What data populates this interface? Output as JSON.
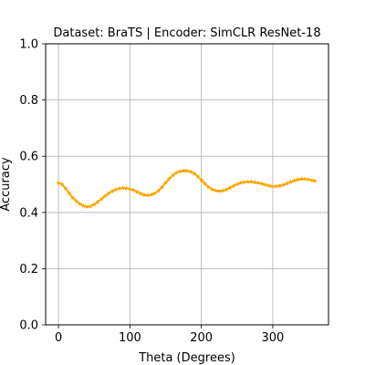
{
  "chart_data": {
    "type": "line",
    "title": "Dataset: BraTS | Encoder: SimCLR ResNet-18",
    "xlabel": "Theta (Degrees)",
    "ylabel": "Accuracy",
    "xlim": [
      -18,
      378
    ],
    "ylim": [
      0.0,
      1.0
    ],
    "xticks": [
      0,
      100,
      200,
      300
    ],
    "yticks": [
      0.0,
      0.2,
      0.4,
      0.6,
      0.8,
      1.0
    ],
    "xtick_labels": [
      "0",
      "100",
      "200",
      "300"
    ],
    "ytick_labels": [
      "0.0",
      "0.2",
      "0.4",
      "0.6",
      "0.8",
      "1.0"
    ],
    "grid": true,
    "series": [
      {
        "color": "#ffa500",
        "marker": "star",
        "x": [
          0,
          5,
          10,
          15,
          20,
          25,
          30,
          35,
          40,
          45,
          50,
          55,
          60,
          65,
          70,
          75,
          80,
          85,
          90,
          95,
          100,
          105,
          110,
          115,
          120,
          125,
          130,
          135,
          140,
          145,
          150,
          155,
          160,
          165,
          170,
          175,
          180,
          185,
          190,
          195,
          200,
          205,
          210,
          215,
          220,
          225,
          230,
          235,
          240,
          245,
          250,
          255,
          260,
          265,
          270,
          275,
          280,
          285,
          290,
          295,
          300,
          305,
          310,
          315,
          320,
          325,
          330,
          335,
          340,
          345,
          350,
          355,
          359
        ],
        "y": [
          0.505,
          0.5,
          0.485,
          0.468,
          0.452,
          0.44,
          0.43,
          0.423,
          0.42,
          0.422,
          0.428,
          0.437,
          0.447,
          0.458,
          0.467,
          0.475,
          0.481,
          0.485,
          0.487,
          0.486,
          0.483,
          0.479,
          0.473,
          0.467,
          0.462,
          0.461,
          0.463,
          0.468,
          0.477,
          0.49,
          0.505,
          0.52,
          0.532,
          0.541,
          0.546,
          0.548,
          0.548,
          0.545,
          0.538,
          0.528,
          0.515,
          0.502,
          0.49,
          0.482,
          0.478,
          0.476,
          0.477,
          0.481,
          0.487,
          0.494,
          0.5,
          0.505,
          0.508,
          0.509,
          0.509,
          0.507,
          0.505,
          0.502,
          0.498,
          0.495,
          0.493,
          0.493,
          0.495,
          0.498,
          0.503,
          0.508,
          0.513,
          0.517,
          0.519,
          0.519,
          0.517,
          0.514,
          0.512
        ]
      }
    ]
  }
}
